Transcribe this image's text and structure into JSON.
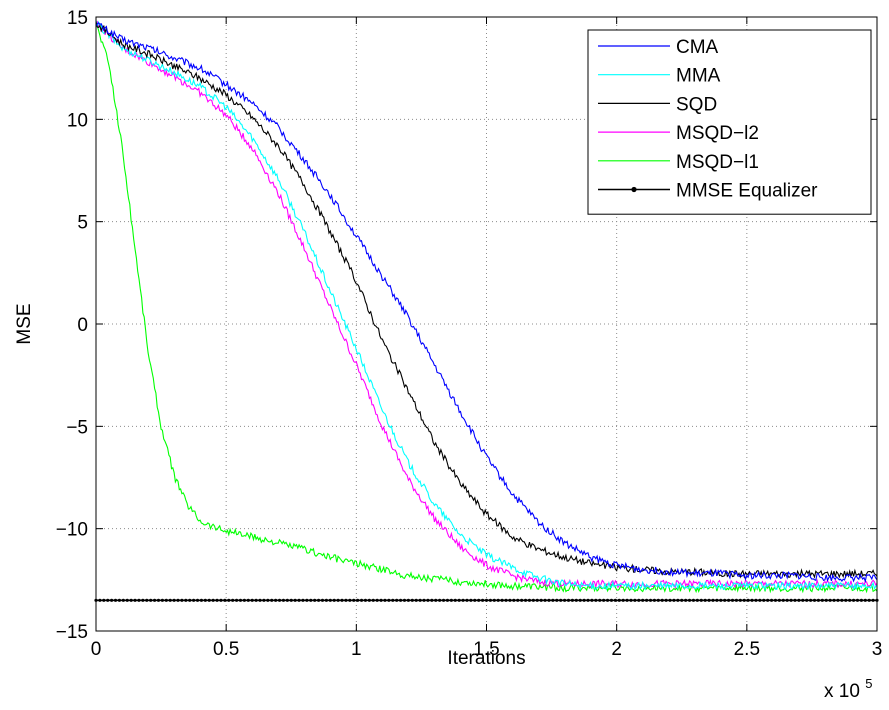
{
  "chart_data": {
    "type": "line",
    "title": "",
    "xlabel": "Iterations",
    "ylabel": "MSE",
    "x_exponent_label": "x 10",
    "x_exponent_power": "5",
    "xlim": [
      0,
      3
    ],
    "ylim": [
      -15,
      15
    ],
    "x_ticks": [
      0,
      0.5,
      1,
      1.5,
      2,
      2.5,
      3
    ],
    "x_tick_labels": [
      "0",
      "0.5",
      "1",
      "1.5",
      "2",
      "2.5",
      "3"
    ],
    "y_ticks": [
      -15,
      -10,
      -5,
      0,
      5,
      10,
      15
    ],
    "y_tick_labels": [
      "−15",
      "−10",
      "−5",
      "0",
      "5",
      "10",
      "15"
    ],
    "grid": true,
    "legend_position": "top-right",
    "series": [
      {
        "name": "CMA",
        "color": "#0000ff",
        "x": [
          0,
          0.1,
          0.2,
          0.3,
          0.4,
          0.5,
          0.6,
          0.7,
          0.8,
          0.9,
          1.0,
          1.1,
          1.2,
          1.3,
          1.4,
          1.5,
          1.6,
          1.7,
          1.8,
          1.9,
          2.0,
          2.1,
          2.2,
          2.3,
          2.4,
          2.5,
          2.6,
          2.7,
          2.8,
          2.9,
          3.0
        ],
        "y": [
          14.7,
          13.9,
          13.5,
          13.0,
          12.5,
          11.7,
          10.8,
          9.6,
          8.0,
          6.3,
          4.3,
          2.3,
          0.3,
          -2.0,
          -4.3,
          -6.5,
          -8.3,
          -9.7,
          -10.7,
          -11.4,
          -11.8,
          -12.0,
          -12.1,
          -12.2,
          -12.2,
          -12.3,
          -12.3,
          -12.3,
          -12.4,
          -12.4,
          -12.4
        ]
      },
      {
        "name": "MMA",
        "color": "#00ffff",
        "x": [
          0,
          0.1,
          0.2,
          0.3,
          0.4,
          0.5,
          0.6,
          0.7,
          0.8,
          0.9,
          1.0,
          1.1,
          1.2,
          1.3,
          1.4,
          1.5,
          1.6,
          1.7,
          1.8,
          1.9,
          2.0,
          2.1,
          2.2,
          2.3,
          2.4,
          2.5,
          2.6,
          2.7,
          2.8,
          2.9,
          3.0
        ],
        "y": [
          14.7,
          13.5,
          12.9,
          12.3,
          11.6,
          10.6,
          9.1,
          7.1,
          4.5,
          1.6,
          -1.2,
          -4.2,
          -6.8,
          -8.8,
          -10.3,
          -11.3,
          -11.9,
          -12.4,
          -12.7,
          -12.8,
          -12.8,
          -12.8,
          -12.8,
          -12.8,
          -12.8,
          -12.8,
          -12.8,
          -12.8,
          -12.8,
          -12.8,
          -12.8
        ]
      },
      {
        "name": "SQD",
        "color": "#000000",
        "x": [
          0,
          0.1,
          0.2,
          0.3,
          0.4,
          0.5,
          0.6,
          0.7,
          0.8,
          0.9,
          1.0,
          1.1,
          1.2,
          1.3,
          1.4,
          1.5,
          1.6,
          1.7,
          1.8,
          1.9,
          2.0,
          2.1,
          2.2,
          2.3,
          2.4,
          2.5,
          2.6,
          2.7,
          2.8,
          2.9,
          3.0
        ],
        "y": [
          14.7,
          13.7,
          13.2,
          12.6,
          12.0,
          11.2,
          10.1,
          8.7,
          6.8,
          4.5,
          2.1,
          -0.8,
          -3.3,
          -5.8,
          -7.8,
          -9.3,
          -10.4,
          -11.0,
          -11.4,
          -11.7,
          -11.9,
          -12.0,
          -12.1,
          -12.1,
          -12.2,
          -12.2,
          -12.2,
          -12.2,
          -12.2,
          -12.2,
          -12.2
        ]
      },
      {
        "name": "MSQD−l2",
        "color": "#ff00ff",
        "x": [
          0,
          0.1,
          0.2,
          0.3,
          0.4,
          0.5,
          0.6,
          0.7,
          0.8,
          0.9,
          1.0,
          1.1,
          1.2,
          1.3,
          1.4,
          1.5,
          1.6,
          1.7,
          1.8,
          1.9,
          2.0,
          2.1,
          2.2,
          2.3,
          2.4,
          2.5,
          2.6,
          2.7,
          2.8,
          2.9,
          3.0
        ],
        "y": [
          14.7,
          13.5,
          12.8,
          12.1,
          11.3,
          10.2,
          8.6,
          6.4,
          3.7,
          0.8,
          -2.0,
          -5.0,
          -7.6,
          -9.5,
          -10.9,
          -11.8,
          -12.3,
          -12.6,
          -12.7,
          -12.7,
          -12.7,
          -12.7,
          -12.7,
          -12.7,
          -12.7,
          -12.7,
          -12.7,
          -12.7,
          -12.7,
          -12.7,
          -12.7
        ]
      },
      {
        "name": "MSQD−l1",
        "color": "#00ff00",
        "x": [
          0,
          0.05,
          0.1,
          0.15,
          0.2,
          0.25,
          0.3,
          0.35,
          0.4,
          0.45,
          0.5,
          0.6,
          0.7,
          0.8,
          0.9,
          1.0,
          1.1,
          1.2,
          1.4,
          1.6,
          1.8,
          2.0,
          2.2,
          2.4,
          2.6,
          2.8,
          3.0
        ],
        "y": [
          14.7,
          12.7,
          8.7,
          3.7,
          -1.3,
          -5.0,
          -7.4,
          -8.8,
          -9.6,
          -9.9,
          -10.1,
          -10.4,
          -10.7,
          -11.0,
          -11.4,
          -11.7,
          -12.0,
          -12.3,
          -12.6,
          -12.8,
          -12.9,
          -12.9,
          -12.9,
          -12.9,
          -12.9,
          -12.9,
          -12.9
        ]
      },
      {
        "name": "MMSE Equalizer",
        "color": "#000000",
        "marker": "dot",
        "x": [
          0,
          0.1,
          0.2,
          0.3,
          0.4,
          0.5,
          0.6,
          0.7,
          0.8,
          0.9,
          1.0,
          1.1,
          1.2,
          1.3,
          1.4,
          1.5,
          1.6,
          1.7,
          1.8,
          1.9,
          2.0,
          2.1,
          2.2,
          2.3,
          2.4,
          2.5,
          2.6,
          2.7,
          2.8,
          2.9,
          3.0
        ],
        "y": [
          -13.5,
          -13.5,
          -13.5,
          -13.5,
          -13.5,
          -13.5,
          -13.5,
          -13.5,
          -13.5,
          -13.5,
          -13.5,
          -13.5,
          -13.5,
          -13.5,
          -13.5,
          -13.5,
          -13.5,
          -13.5,
          -13.5,
          -13.5,
          -13.5,
          -13.5,
          -13.5,
          -13.5,
          -13.5,
          -13.5,
          -13.5,
          -13.5,
          -13.5,
          -13.5,
          -13.5
        ]
      }
    ]
  }
}
